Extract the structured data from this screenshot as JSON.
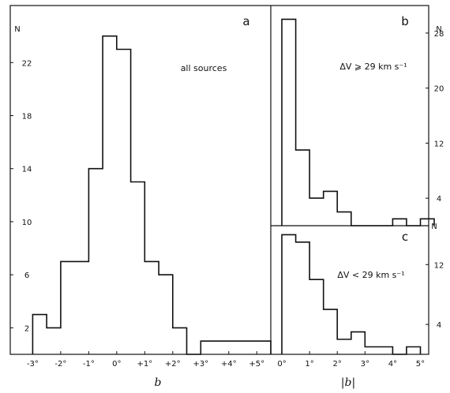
{
  "chart_data": [
    {
      "id": "a",
      "type": "histogram",
      "panel_label": "a",
      "annotation": "all sources",
      "xlabel": "b",
      "ylabel": "N",
      "xlim": [
        -3.8,
        5.5
      ],
      "ylim": [
        0,
        26.3
      ],
      "x_ticks": [
        -3,
        -2,
        -1,
        0,
        1,
        2,
        3,
        4,
        5
      ],
      "x_tick_labels": [
        "-3°",
        "-2°",
        "-1°",
        "0°",
        "+1°",
        "+2°",
        "+3°",
        "+4°",
        "+5°"
      ],
      "y_ticks": [
        2,
        6,
        10,
        14,
        18,
        22
      ],
      "y_tick_labels": [
        "2",
        "6",
        "10",
        "14",
        "18",
        "22"
      ],
      "bin_edges": [
        -3,
        -2.5,
        -2,
        -1.5,
        -1,
        -0.5,
        0,
        0.5,
        1,
        1.5,
        2,
        2.5,
        3,
        3.5,
        4,
        4.5,
        5,
        5.5
      ],
      "counts": [
        3,
        2,
        7,
        7,
        14,
        24,
        23,
        13,
        7,
        6,
        2,
        0,
        1,
        1,
        1,
        1,
        1
      ]
    },
    {
      "id": "b",
      "type": "histogram",
      "panel_label": "b",
      "annotation": "ΔV ⩾ 29 km s⁻¹",
      "xlabel": "|b|",
      "ylabel": "N",
      "xlim": [
        -0.4,
        5.3
      ],
      "ylim": [
        0,
        32
      ],
      "y_ticks": [
        4,
        12,
        20,
        28
      ],
      "y_tick_labels": [
        "4",
        "12",
        "20",
        "28"
      ],
      "bin_edges": [
        0,
        0.5,
        1,
        1.5,
        2,
        2.5,
        3,
        3.5,
        4,
        4.5,
        5,
        5.5
      ],
      "counts": [
        30,
        11,
        4,
        5,
        2,
        0,
        0,
        0,
        1,
        0,
        1
      ]
    },
    {
      "id": "c",
      "type": "histogram",
      "panel_label": "c",
      "annotation": "ΔV < 29 km s⁻¹",
      "xlabel": "|b|",
      "ylabel": "",
      "xlim": [
        -0.4,
        5.3
      ],
      "ylim": [
        0,
        17.2
      ],
      "x_ticks": [
        0,
        1,
        2,
        3,
        4,
        5
      ],
      "x_tick_labels": [
        "0°",
        "1°",
        "2°",
        "3°",
        "4°",
        "5°"
      ],
      "y_ticks": [
        4,
        12
      ],
      "y_tick_labels": [
        "4",
        "12"
      ],
      "bin_edges": [
        0,
        0.5,
        1,
        1.5,
        2,
        2.5,
        3,
        3.5,
        4,
        4.5,
        5
      ],
      "counts": [
        16,
        15,
        10,
        6,
        2,
        3,
        1,
        1,
        0,
        1
      ]
    }
  ]
}
